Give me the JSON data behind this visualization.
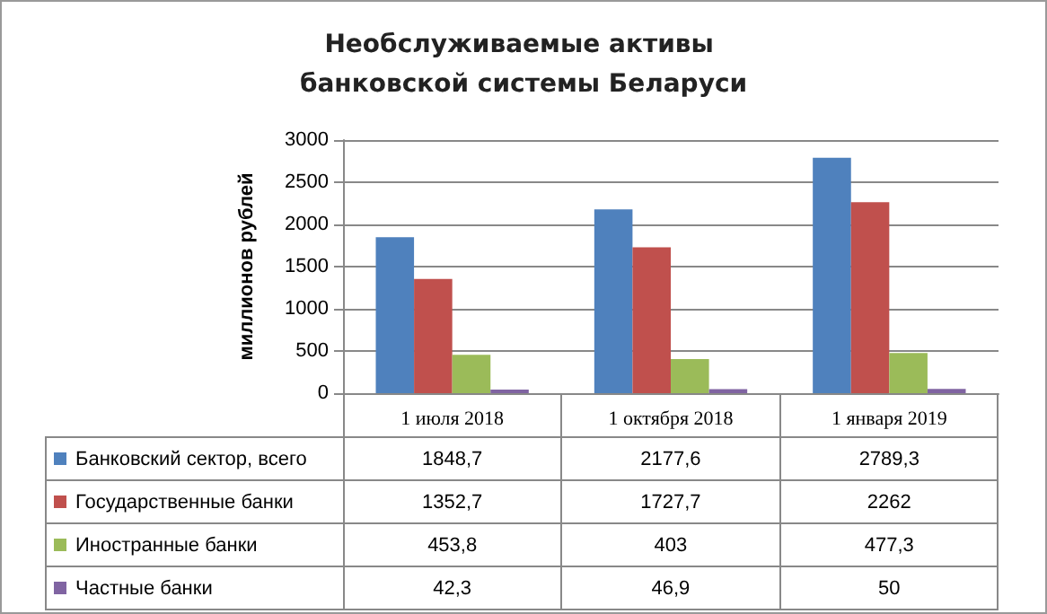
{
  "chart_data": {
    "type": "bar",
    "title": "Необслуживаемые активы банковской системы Беларуси",
    "ylabel": "миллионов рублей",
    "categories": [
      "1 июля 2018",
      "1 октября 2018",
      "1 января 2019"
    ],
    "series": [
      {
        "name": "Банковский сектор, всего",
        "color": "#4f81bd",
        "values": [
          1848.7,
          2177.6,
          2789.3
        ],
        "value_labels": [
          "1848,7",
          "2177,6",
          "2789,3"
        ]
      },
      {
        "name": "Государственные банки",
        "color": "#c0504d",
        "values": [
          1352.7,
          1727.7,
          2262
        ],
        "value_labels": [
          "1352,7",
          "1727,7",
          "2262"
        ]
      },
      {
        "name": "Иностранные банки",
        "color": "#9bbb59",
        "values": [
          453.8,
          403,
          477.3
        ],
        "value_labels": [
          "453,8",
          "403",
          "477,3"
        ]
      },
      {
        "name": "Частные банки",
        "color": "#8064a2",
        "values": [
          42.3,
          46.9,
          50
        ],
        "value_labels": [
          "42,3",
          "46,9",
          "50"
        ]
      }
    ],
    "ylim": [
      0,
      3000
    ],
    "yticks": [
      0,
      500,
      1000,
      1500,
      2000,
      2500,
      3000
    ],
    "grid": "y",
    "legend": "bottom"
  }
}
